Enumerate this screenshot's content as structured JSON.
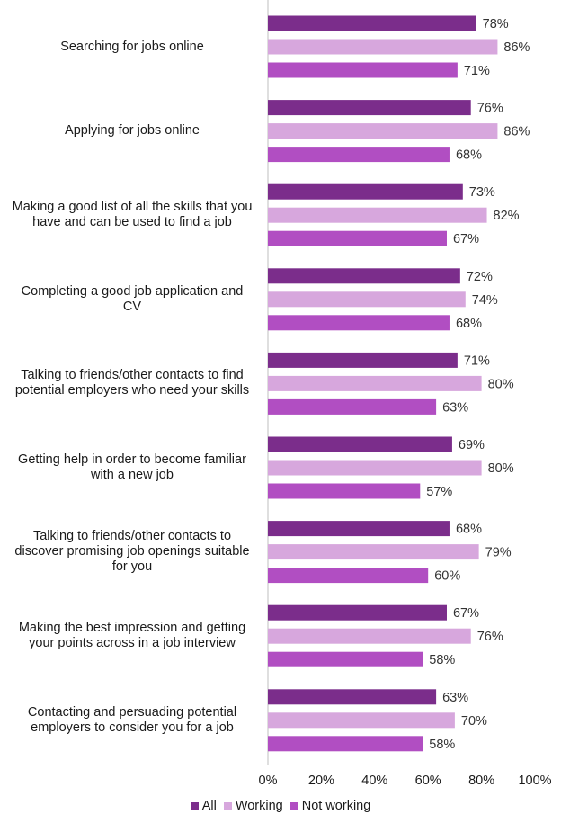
{
  "chart_data": {
    "type": "bar",
    "orientation": "horizontal",
    "categories": [
      "Searching for jobs online",
      "Applying for jobs online",
      "Making a good list of all the skills that you have and can be used to find a job",
      "Completing a good job application and CV",
      "Talking to friends/other contacts to find potential employers who need your skills",
      "Getting help in order to become familiar with a new job",
      "Talking to friends/other contacts to discover promising job openings suitable for you",
      "Making the best impression and getting your points across in a job interview",
      "Contacting and persuading potential employers to consider you for a job"
    ],
    "category_lines": [
      [
        "Searching for jobs online"
      ],
      [
        "Applying for jobs online"
      ],
      [
        "Making a good list of all the skills that you",
        "have and can be used to find a job"
      ],
      [
        "Completing a good job application and",
        "CV"
      ],
      [
        "Talking to friends/other contacts to find",
        "potential employers who need your skills"
      ],
      [
        "Getting help in order to become familiar",
        "with a new job"
      ],
      [
        "Talking to friends/other contacts to",
        "discover promising job openings suitable",
        "for you"
      ],
      [
        "Making the best impression and getting",
        "your points across in a job interview"
      ],
      [
        "Contacting and persuading potential",
        "employers to consider you for a job"
      ]
    ],
    "series": [
      {
        "name": "All",
        "color": "#7b2d8b",
        "values": [
          78,
          76,
          73,
          72,
          71,
          69,
          68,
          67,
          63
        ]
      },
      {
        "name": "Working",
        "color": "#d7a7dd",
        "values": [
          86,
          86,
          82,
          74,
          80,
          80,
          79,
          76,
          70
        ]
      },
      {
        "name": "Not working",
        "color": "#b14ec2",
        "values": [
          71,
          68,
          67,
          68,
          63,
          57,
          60,
          58,
          58
        ]
      }
    ],
    "xlim": [
      0,
      100
    ],
    "x_ticks": [
      0,
      20,
      40,
      60,
      80,
      100
    ],
    "x_tick_labels": [
      "0%",
      "20%",
      "40%",
      "60%",
      "80%",
      "100%"
    ],
    "value_suffix": "%",
    "grid": false,
    "legend_position": "bottom"
  }
}
